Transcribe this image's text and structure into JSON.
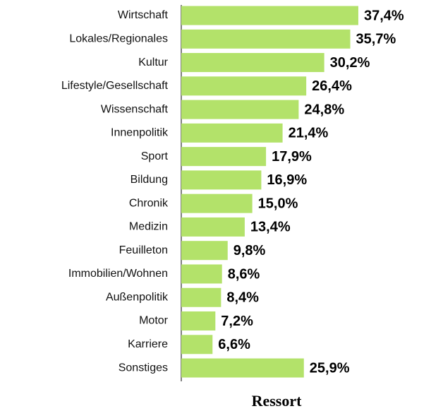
{
  "chart_data": {
    "type": "bar",
    "orientation": "horizontal",
    "x_label": "Ressort",
    "categories": [
      "Wirtschaft",
      "Lokales/Regionales",
      "Kultur",
      "Lifestyle/Gesellschaft",
      "Wissenschaft",
      "Innenpolitik",
      "Sport",
      "Bildung",
      "Chronik",
      "Medizin",
      "Feuilleton",
      "Immobilien/Wohnen",
      "Außenpolitik",
      "Motor",
      "Karriere",
      "Sonstiges"
    ],
    "values": [
      37.4,
      35.7,
      30.2,
      26.4,
      24.8,
      21.4,
      17.9,
      16.9,
      15.0,
      13.4,
      9.8,
      8.6,
      8.4,
      7.2,
      6.6,
      25.9
    ],
    "value_labels": [
      "37,4%",
      "35,7%",
      "30,2%",
      "26,4%",
      "24,8%",
      "21,4%",
      "17,9%",
      "16,9%",
      "15,0%",
      "13,4%",
      "9,8%",
      "8,6%",
      "8,4%",
      "7,2%",
      "6,6%",
      "25,9%"
    ],
    "color": "#b3e26a"
  }
}
